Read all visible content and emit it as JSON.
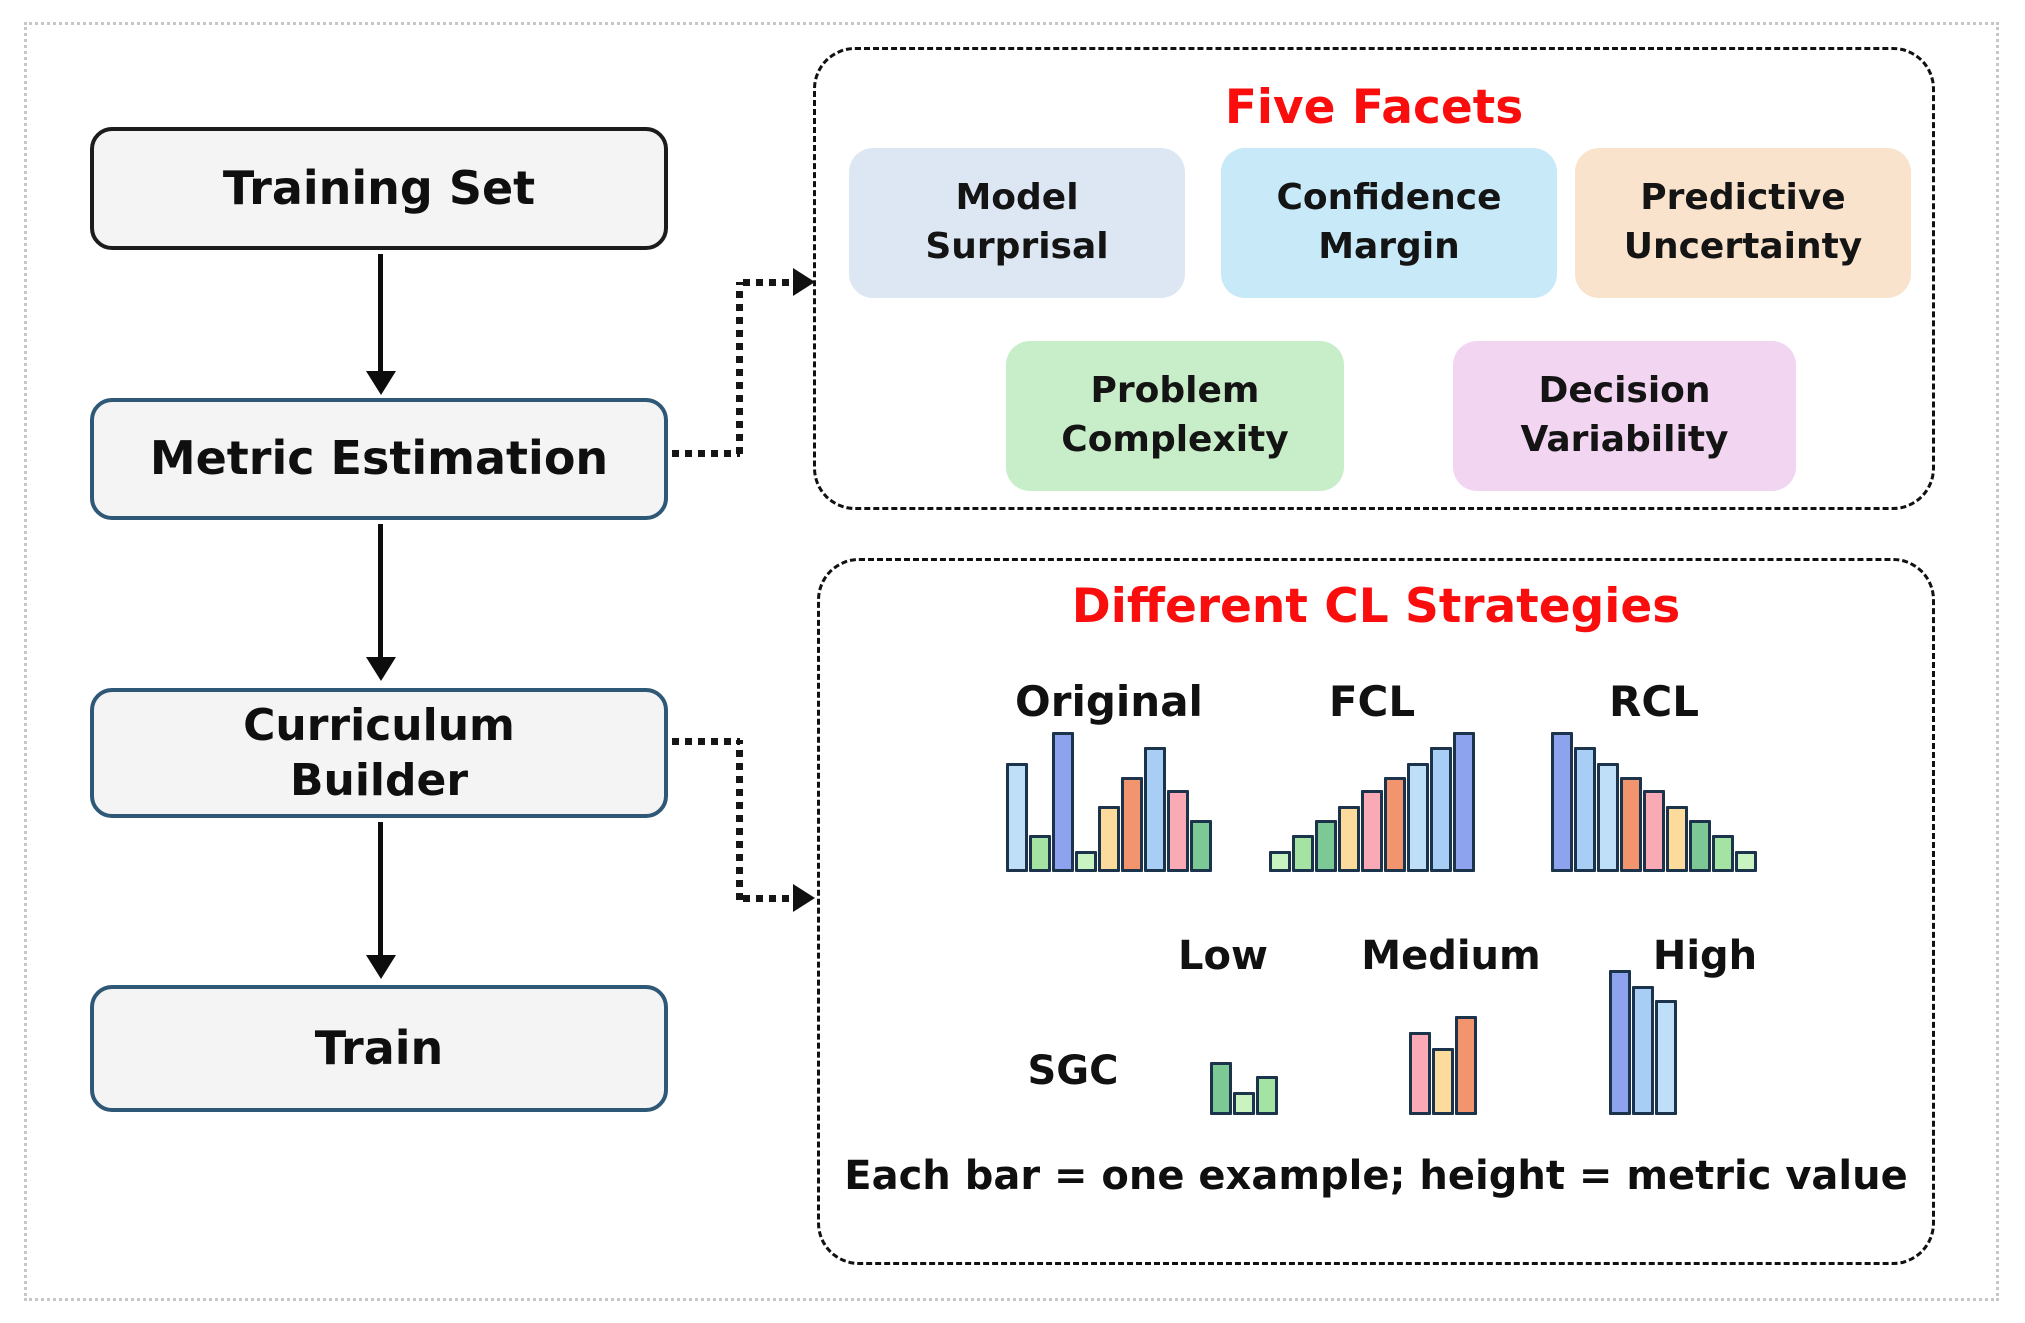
{
  "pipeline": {
    "nodes": [
      {
        "label": "Training Set"
      },
      {
        "label": "Metric Estimation"
      },
      {
        "label": "Curriculum Builder"
      },
      {
        "label": "Train"
      }
    ]
  },
  "facets_panel": {
    "title": "Five Facets",
    "title_color": "#fa0d0d",
    "chips": [
      {
        "label": "Model Surprisal",
        "color": "#dde7f3"
      },
      {
        "label": "Confidence Margin",
        "color": "#c7e9f8"
      },
      {
        "label": "Predictive Uncertainty",
        "color": "#fae3cd"
      },
      {
        "label": "Problem Complexity",
        "color": "#c7eec8"
      },
      {
        "label": "Decision Variability",
        "color": "#f2d5f1"
      }
    ]
  },
  "strategies_panel": {
    "title": "Different CL Strategies",
    "title_color": "#fa0d0d",
    "row_label": "SGC",
    "caption": "Each bar = one example; height = metric value"
  },
  "chart_data": {
    "type": "bar",
    "note": "Mini illustrative bar charts; each bar = one training example, bar height = curriculum metric value (relative units, px of 145 max)",
    "palette": {
      "blue1": "#8ea3ee",
      "blue2": "#a9cef5",
      "blue3": "#bfdff9",
      "green1": "#7dc996",
      "green2": "#a5e3a2",
      "green3": "#c9f4c2",
      "tan": "#fcdb9d",
      "coral": "#f2946e",
      "pink": "#f9aab4"
    },
    "groups": [
      {
        "label": "Original",
        "heights": [
          109,
          37,
          140,
          21,
          66,
          95,
          125,
          82,
          52
        ],
        "colors": [
          "blue3",
          "green2",
          "blue1",
          "green3",
          "tan",
          "coral",
          "blue2",
          "pink",
          "green1"
        ]
      },
      {
        "label": "FCL",
        "heights": [
          21,
          37,
          52,
          66,
          82,
          95,
          109,
          125,
          140
        ],
        "colors": [
          "green3",
          "green2",
          "green1",
          "tan",
          "pink",
          "coral",
          "blue3",
          "blue2",
          "blue1"
        ]
      },
      {
        "label": "RCL",
        "heights": [
          140,
          125,
          109,
          95,
          82,
          66,
          52,
          37,
          21
        ],
        "colors": [
          "blue1",
          "blue2",
          "blue3",
          "coral",
          "pink",
          "tan",
          "green1",
          "green2",
          "green3"
        ]
      },
      {
        "label": "Low",
        "heights": [
          53,
          23,
          39
        ],
        "colors": [
          "green1",
          "green3",
          "green2"
        ]
      },
      {
        "label": "Medium",
        "heights": [
          83,
          67,
          99
        ],
        "colors": [
          "pink",
          "tan",
          "coral"
        ]
      },
      {
        "label": "High",
        "heights": [
          145,
          129,
          115
        ],
        "colors": [
          "blue1",
          "blue2",
          "blue3"
        ]
      }
    ]
  }
}
